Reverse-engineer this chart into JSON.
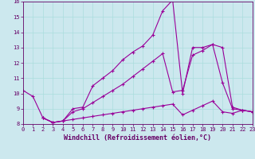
{
  "xlabel": "Windchill (Refroidissement éolien,°C)",
  "background_color": "#cce8ee",
  "line_color": "#990099",
  "grid_color": "#aadddd",
  "xlim": [
    0,
    23
  ],
  "ylim": [
    8,
    16
  ],
  "xticks": [
    0,
    1,
    2,
    3,
    4,
    5,
    6,
    7,
    8,
    9,
    10,
    11,
    12,
    13,
    14,
    15,
    16,
    17,
    18,
    19,
    20,
    21,
    22,
    23
  ],
  "yticks": [
    8,
    9,
    10,
    11,
    12,
    13,
    14,
    15,
    16
  ],
  "line1_x": [
    0,
    1,
    2,
    3,
    4,
    5,
    6,
    7,
    8,
    9,
    10,
    11,
    12,
    13,
    14,
    15,
    16,
    17,
    18,
    19,
    20,
    21,
    22,
    23
  ],
  "line1_y": [
    10.2,
    9.8,
    8.4,
    8.1,
    8.2,
    9.0,
    9.1,
    10.5,
    11.0,
    11.5,
    12.2,
    12.7,
    13.1,
    13.8,
    15.4,
    16.1,
    10.0,
    13.0,
    13.0,
    13.2,
    10.7,
    9.0,
    8.9,
    8.8
  ],
  "line2_x": [
    2,
    3,
    4,
    5,
    6,
    7,
    8,
    9,
    10,
    11,
    12,
    13,
    14,
    15,
    16,
    17,
    18,
    19,
    20,
    21,
    22,
    23
  ],
  "line2_y": [
    8.4,
    8.1,
    8.2,
    8.8,
    9.0,
    9.4,
    9.8,
    10.2,
    10.6,
    11.1,
    11.6,
    12.1,
    12.6,
    10.1,
    10.2,
    12.5,
    12.8,
    13.2,
    13.0,
    9.1,
    8.9,
    8.8
  ],
  "line3_x": [
    2,
    3,
    4,
    5,
    6,
    7,
    8,
    9,
    10,
    11,
    12,
    13,
    14,
    15,
    16,
    17,
    18,
    19,
    20,
    21,
    22,
    23
  ],
  "line3_y": [
    8.4,
    8.1,
    8.2,
    8.3,
    8.4,
    8.5,
    8.6,
    8.7,
    8.8,
    8.9,
    9.0,
    9.1,
    9.2,
    9.3,
    8.6,
    8.9,
    9.2,
    9.5,
    8.8,
    8.7,
    8.9,
    8.8
  ],
  "figsize": [
    3.2,
    2.0
  ],
  "dpi": 100,
  "marker": "+",
  "markersize": 3,
  "linewidth": 0.8,
  "tick_fontsize": 5,
  "label_fontsize": 6
}
